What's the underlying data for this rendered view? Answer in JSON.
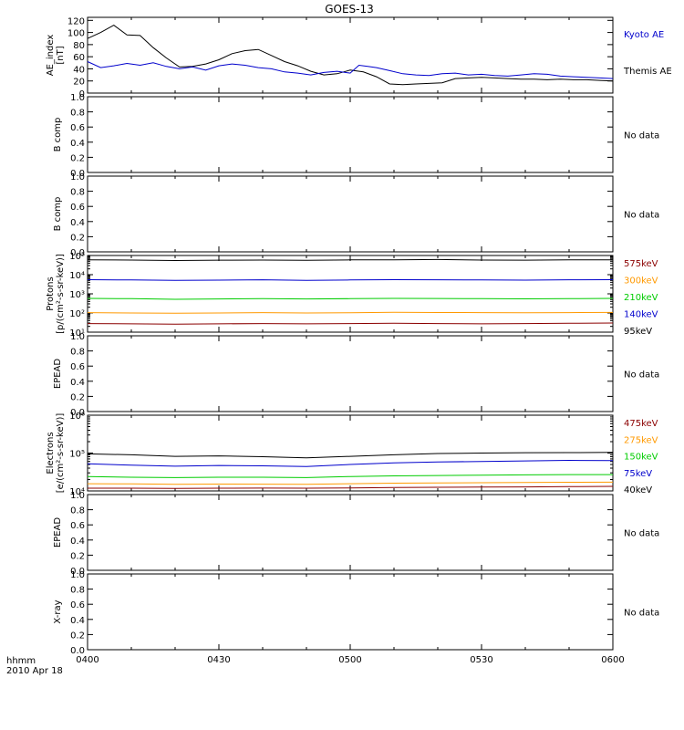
{
  "title": "GOES-13",
  "time_axis": {
    "label_line1": "hhmm",
    "label_line2": "2010 Apr 18",
    "ticks": [
      "0400",
      "0430",
      "0500",
      "0530",
      "0600"
    ],
    "tick_minutes": [
      0,
      30,
      60,
      90,
      120
    ],
    "range_minutes": [
      0,
      120
    ]
  },
  "panels": [
    {
      "id": "ae",
      "ylabel": [
        "AE_index",
        "[nT]"
      ],
      "scale": "linear",
      "ylim": [
        0,
        125
      ],
      "ticks": [
        0,
        20,
        40,
        60,
        80,
        100,
        120
      ],
      "tick_labels": [
        "0",
        "20",
        "40",
        "60",
        "80",
        "100",
        "120"
      ],
      "legend": [
        {
          "label": "Kyoto AE",
          "color": "#0000cc"
        },
        {
          "label": "Themis AE",
          "color": "#000000"
        }
      ],
      "no_data": ""
    },
    {
      "id": "bcomp1",
      "ylabel": [
        "B comp"
      ],
      "scale": "linear",
      "ylim": [
        0,
        1
      ],
      "ticks": [
        0,
        0.2,
        0.4,
        0.6,
        0.8,
        1.0
      ],
      "tick_labels": [
        "0.0",
        "0.2",
        "0.4",
        "0.6",
        "0.8",
        "1.0"
      ],
      "legend": [],
      "no_data": "No data"
    },
    {
      "id": "bcomp2",
      "ylabel": [
        "B comp"
      ],
      "scale": "linear",
      "ylim": [
        0,
        1
      ],
      "ticks": [
        0,
        0.2,
        0.4,
        0.6,
        0.8,
        1.0
      ],
      "tick_labels": [
        "0.0",
        "0.2",
        "0.4",
        "0.6",
        "0.8",
        "1.0"
      ],
      "legend": [],
      "no_data": "No data"
    },
    {
      "id": "protons",
      "ylabel": [
        "Protons",
        "[p/(cm²-s-sr-keV)]"
      ],
      "scale": "log",
      "ylim": [
        10,
        100000
      ],
      "ticks": [
        10,
        100,
        1000,
        10000,
        100000
      ],
      "tick_labels": [
        "10¹",
        "10²",
        "10³",
        "10⁴",
        "10⁵"
      ],
      "legend": [
        {
          "label": "575keV",
          "color": "#8b0000"
        },
        {
          "label": "300keV",
          "color": "#ff9900"
        },
        {
          "label": "210keV",
          "color": "#00cc00"
        },
        {
          "label": "140keV",
          "color": "#0000cc"
        },
        {
          "label": "95keV",
          "color": "#000000"
        }
      ],
      "no_data": ""
    },
    {
      "id": "epead1",
      "ylabel": [
        "EPEAD"
      ],
      "scale": "linear",
      "ylim": [
        0,
        1
      ],
      "ticks": [
        0,
        0.2,
        0.4,
        0.6,
        0.8,
        1.0
      ],
      "tick_labels": [
        "0.0",
        "0.2",
        "0.4",
        "0.6",
        "0.8",
        "1.0"
      ],
      "legend": [],
      "no_data": "No data"
    },
    {
      "id": "electrons",
      "ylabel": [
        "Electrons",
        "[e/(cm²-s-sr-keV)]"
      ],
      "scale": "log",
      "ylim": [
        10000,
        1000000
      ],
      "ticks": [
        10000,
        100000,
        1000000
      ],
      "tick_labels": [
        "10⁴",
        "10⁵",
        "10⁶"
      ],
      "legend": [
        {
          "label": "475keV",
          "color": "#8b0000"
        },
        {
          "label": "275keV",
          "color": "#ff9900"
        },
        {
          "label": "150keV",
          "color": "#00cc00"
        },
        {
          "label": "75keV",
          "color": "#0000cc"
        },
        {
          "label": "40keV",
          "color": "#000000"
        }
      ],
      "no_data": ""
    },
    {
      "id": "epead2",
      "ylabel": [
        "EPEAD"
      ],
      "scale": "linear",
      "ylim": [
        0,
        1
      ],
      "ticks": [
        0,
        0.2,
        0.4,
        0.6,
        0.8,
        1.0
      ],
      "tick_labels": [
        "0.0",
        "0.2",
        "0.4",
        "0.6",
        "0.8",
        "1.0"
      ],
      "legend": [],
      "no_data": "No data"
    },
    {
      "id": "xray",
      "ylabel": [
        "X-ray"
      ],
      "scale": "linear",
      "ylim": [
        0,
        1
      ],
      "ticks": [
        0,
        0.2,
        0.4,
        0.6,
        0.8,
        1.0
      ],
      "tick_labels": [
        "0.0",
        "0.2",
        "0.4",
        "0.6",
        "0.8",
        "1.0"
      ],
      "legend": [],
      "no_data": "No data"
    }
  ],
  "chart_data": [
    {
      "type": "line",
      "panel": "ae",
      "series": [
        {
          "name": "Themis AE",
          "color": "#000000",
          "x": [
            0,
            3,
            6,
            9,
            12,
            15,
            18,
            21,
            24,
            27,
            30,
            33,
            36,
            39,
            42,
            45,
            48,
            51,
            54,
            57,
            60,
            63,
            66,
            69,
            72,
            75,
            78,
            81,
            84,
            87,
            90,
            93,
            96,
            99,
            102,
            105,
            108,
            111,
            114,
            117,
            120
          ],
          "y": [
            90,
            100,
            112,
            96,
            95,
            75,
            58,
            43,
            44,
            48,
            55,
            65,
            70,
            72,
            62,
            52,
            45,
            36,
            30,
            32,
            38,
            35,
            27,
            15,
            14,
            15,
            16,
            17,
            24,
            25,
            26,
            25,
            24,
            23,
            23,
            22,
            23,
            22,
            22,
            21,
            20
          ]
        },
        {
          "name": "Kyoto AE",
          "color": "#0000cc",
          "x": [
            0,
            3,
            6,
            9,
            12,
            15,
            18,
            21,
            24,
            27,
            30,
            33,
            36,
            39,
            42,
            45,
            48,
            51,
            54,
            57,
            60,
            62,
            64,
            66,
            69,
            72,
            75,
            78,
            81,
            84,
            87,
            90,
            93,
            96,
            99,
            102,
            105,
            108,
            111,
            114,
            117,
            120
          ],
          "y": [
            52,
            42,
            45,
            49,
            46,
            50,
            44,
            40,
            43,
            38,
            45,
            48,
            46,
            42,
            40,
            35,
            33,
            30,
            34,
            36,
            33,
            46,
            44,
            42,
            37,
            32,
            30,
            29,
            32,
            33,
            30,
            31,
            29,
            28,
            30,
            32,
            31,
            28,
            27,
            26,
            25,
            24
          ]
        }
      ],
      "ylim": [
        0,
        125
      ]
    },
    {
      "type": "line",
      "panel": "protons",
      "scale": "log",
      "series": [
        {
          "name": "95keV",
          "color": "#000000",
          "x": [
            0,
            10,
            20,
            30,
            40,
            50,
            60,
            70,
            80,
            90,
            100,
            110,
            120
          ],
          "y": [
            60000,
            58000,
            55000,
            57000,
            58000,
            56000,
            59000,
            60000,
            62000,
            58000,
            57000,
            59000,
            60000
          ]
        },
        {
          "name": "140keV",
          "color": "#0000cc",
          "x": [
            0,
            10,
            20,
            30,
            40,
            50,
            60,
            70,
            80,
            90,
            100,
            110,
            120
          ],
          "y": [
            5500,
            5300,
            5000,
            5200,
            5400,
            5000,
            5300,
            5500,
            5400,
            5300,
            5200,
            5400,
            5500
          ]
        },
        {
          "name": "210keV",
          "color": "#00cc00",
          "x": [
            0,
            10,
            20,
            30,
            40,
            50,
            60,
            70,
            80,
            90,
            100,
            110,
            120
          ],
          "y": [
            580,
            560,
            520,
            540,
            560,
            540,
            560,
            580,
            570,
            560,
            550,
            560,
            580
          ]
        },
        {
          "name": "300keV",
          "color": "#ff9900",
          "x": [
            0,
            10,
            20,
            30,
            40,
            50,
            60,
            70,
            80,
            90,
            100,
            110,
            120
          ],
          "y": [
            105,
            100,
            98,
            100,
            105,
            100,
            102,
            108,
            106,
            104,
            103,
            105,
            107
          ]
        },
        {
          "name": "575keV",
          "color": "#8b0000",
          "x": [
            0,
            10,
            20,
            30,
            40,
            50,
            60,
            70,
            80,
            90,
            100,
            110,
            120
          ],
          "y": [
            28,
            27,
            26,
            27,
            28,
            27,
            28,
            29,
            28,
            27,
            28,
            29,
            30
          ]
        }
      ],
      "ylim": [
        10,
        100000
      ]
    },
    {
      "type": "line",
      "panel": "electrons",
      "scale": "log",
      "series": [
        {
          "name": "40keV",
          "color": "#000000",
          "x": [
            0,
            10,
            20,
            30,
            40,
            50,
            60,
            70,
            80,
            90,
            100,
            110,
            120
          ],
          "y": [
            95000,
            90000,
            82000,
            84000,
            80000,
            75000,
            82000,
            90000,
            97000,
            100000,
            102000,
            103000,
            104000
          ]
        },
        {
          "name": "75keV",
          "color": "#0000cc",
          "x": [
            0,
            10,
            20,
            30,
            40,
            50,
            60,
            70,
            80,
            90,
            100,
            110,
            120
          ],
          "y": [
            52000,
            48000,
            45000,
            47000,
            46000,
            44000,
            50000,
            55000,
            58000,
            60000,
            62000,
            64000,
            63000
          ]
        },
        {
          "name": "150keV",
          "color": "#00cc00",
          "x": [
            0,
            10,
            20,
            30,
            40,
            50,
            60,
            70,
            80,
            90,
            100,
            110,
            120
          ],
          "y": [
            24000,
            23000,
            22500,
            23000,
            23000,
            22500,
            24000,
            25000,
            25500,
            26000,
            26500,
            27000,
            27000
          ]
        },
        {
          "name": "275keV",
          "color": "#ff9900",
          "x": [
            0,
            10,
            20,
            30,
            40,
            50,
            60,
            70,
            80,
            90,
            100,
            110,
            120
          ],
          "y": [
            15500,
            15300,
            15000,
            15200,
            15100,
            15000,
            15500,
            16000,
            16200,
            16500,
            16700,
            16900,
            17000
          ]
        },
        {
          "name": "475keV",
          "color": "#8b0000",
          "x": [
            0,
            10,
            20,
            30,
            40,
            50,
            60,
            70,
            80,
            90,
            100,
            110,
            120
          ],
          "y": [
            11800,
            11800,
            11700,
            11800,
            11900,
            11800,
            12000,
            12300,
            12500,
            12700,
            12800,
            13000,
            13200
          ]
        }
      ],
      "ylim": [
        10000,
        1000000
      ]
    }
  ]
}
